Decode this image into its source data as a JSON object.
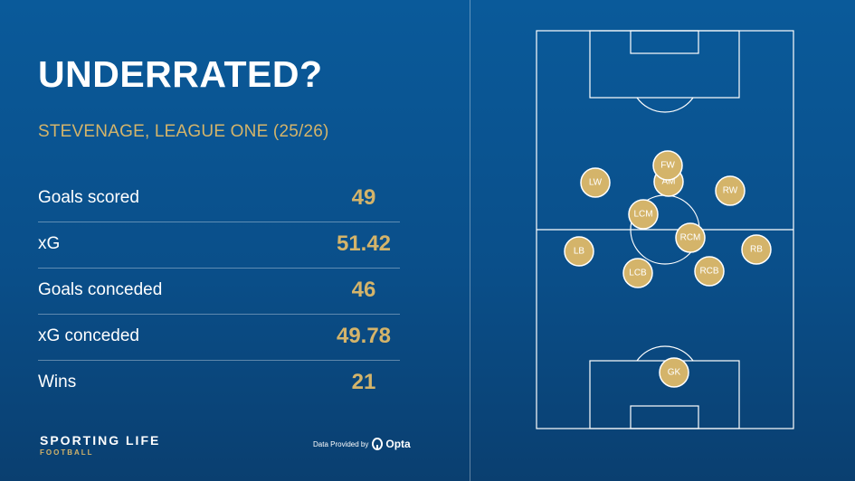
{
  "title": "UNDERRATED?",
  "subtitle": "STEVENAGE, LEAGUE ONE (25/26)",
  "stats": [
    {
      "label": "Goals scored",
      "value": "49"
    },
    {
      "label": "xG",
      "value": "51.42"
    },
    {
      "label": "Goals conceded",
      "value": "46"
    },
    {
      "label": "xG conceded",
      "value": "49.78"
    },
    {
      "label": "Wins",
      "value": "21"
    }
  ],
  "brand": {
    "name": "SPORTING LIFE",
    "section": "FOOTBALL"
  },
  "provider": {
    "text": "Data Provided by",
    "name": "Opta"
  },
  "colors": {
    "background": "#0a4f8a",
    "accent_gold": "#d4b46a",
    "text": "#ffffff"
  },
  "formation": {
    "players": [
      {
        "pos": "LW"
      },
      {
        "pos": "AM"
      },
      {
        "pos": "FW"
      },
      {
        "pos": "RW"
      },
      {
        "pos": "LCM"
      },
      {
        "pos": "RCM"
      },
      {
        "pos": "LB"
      },
      {
        "pos": "RB"
      },
      {
        "pos": "LCB"
      },
      {
        "pos": "RCB"
      },
      {
        "pos": "GK"
      }
    ]
  }
}
